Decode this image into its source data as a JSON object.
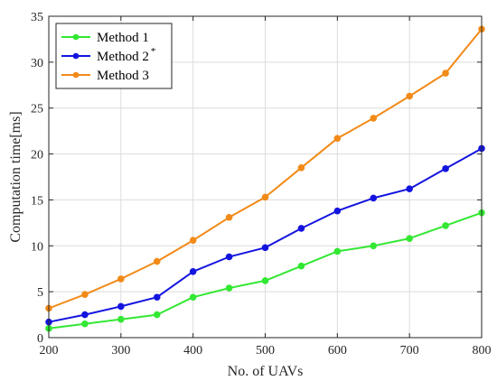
{
  "chart_data": {
    "type": "line",
    "title": "",
    "xlabel": "No. of UAVs",
    "ylabel": "Computation time[ms]",
    "xlim": [
      200,
      800
    ],
    "ylim": [
      0,
      35
    ],
    "xticks": [
      200,
      300,
      400,
      500,
      600,
      700,
      800
    ],
    "yticks": [
      0,
      5,
      10,
      15,
      20,
      25,
      30,
      35
    ],
    "grid": true,
    "legend_position": "top-left",
    "x": [
      200,
      250,
      300,
      350,
      400,
      450,
      500,
      550,
      600,
      650,
      700,
      750,
      800
    ],
    "series": [
      {
        "name": "Method 1",
        "superscript": "",
        "color": "#33e833",
        "values": [
          1.0,
          1.5,
          2.0,
          2.5,
          4.4,
          5.4,
          6.2,
          7.8,
          9.4,
          10.0,
          10.8,
          12.2,
          13.6
        ]
      },
      {
        "name": "Method 2",
        "superscript": "*",
        "color": "#1414e0",
        "values": [
          1.7,
          2.5,
          3.4,
          4.4,
          7.2,
          8.8,
          9.8,
          11.9,
          13.8,
          15.2,
          16.2,
          18.4,
          20.6
        ]
      },
      {
        "name": "Method 3",
        "superscript": "",
        "color": "#f28a18",
        "values": [
          3.2,
          4.7,
          6.4,
          8.3,
          10.6,
          13.1,
          15.3,
          18.5,
          21.7,
          23.9,
          26.3,
          28.8,
          33.6
        ]
      }
    ]
  }
}
